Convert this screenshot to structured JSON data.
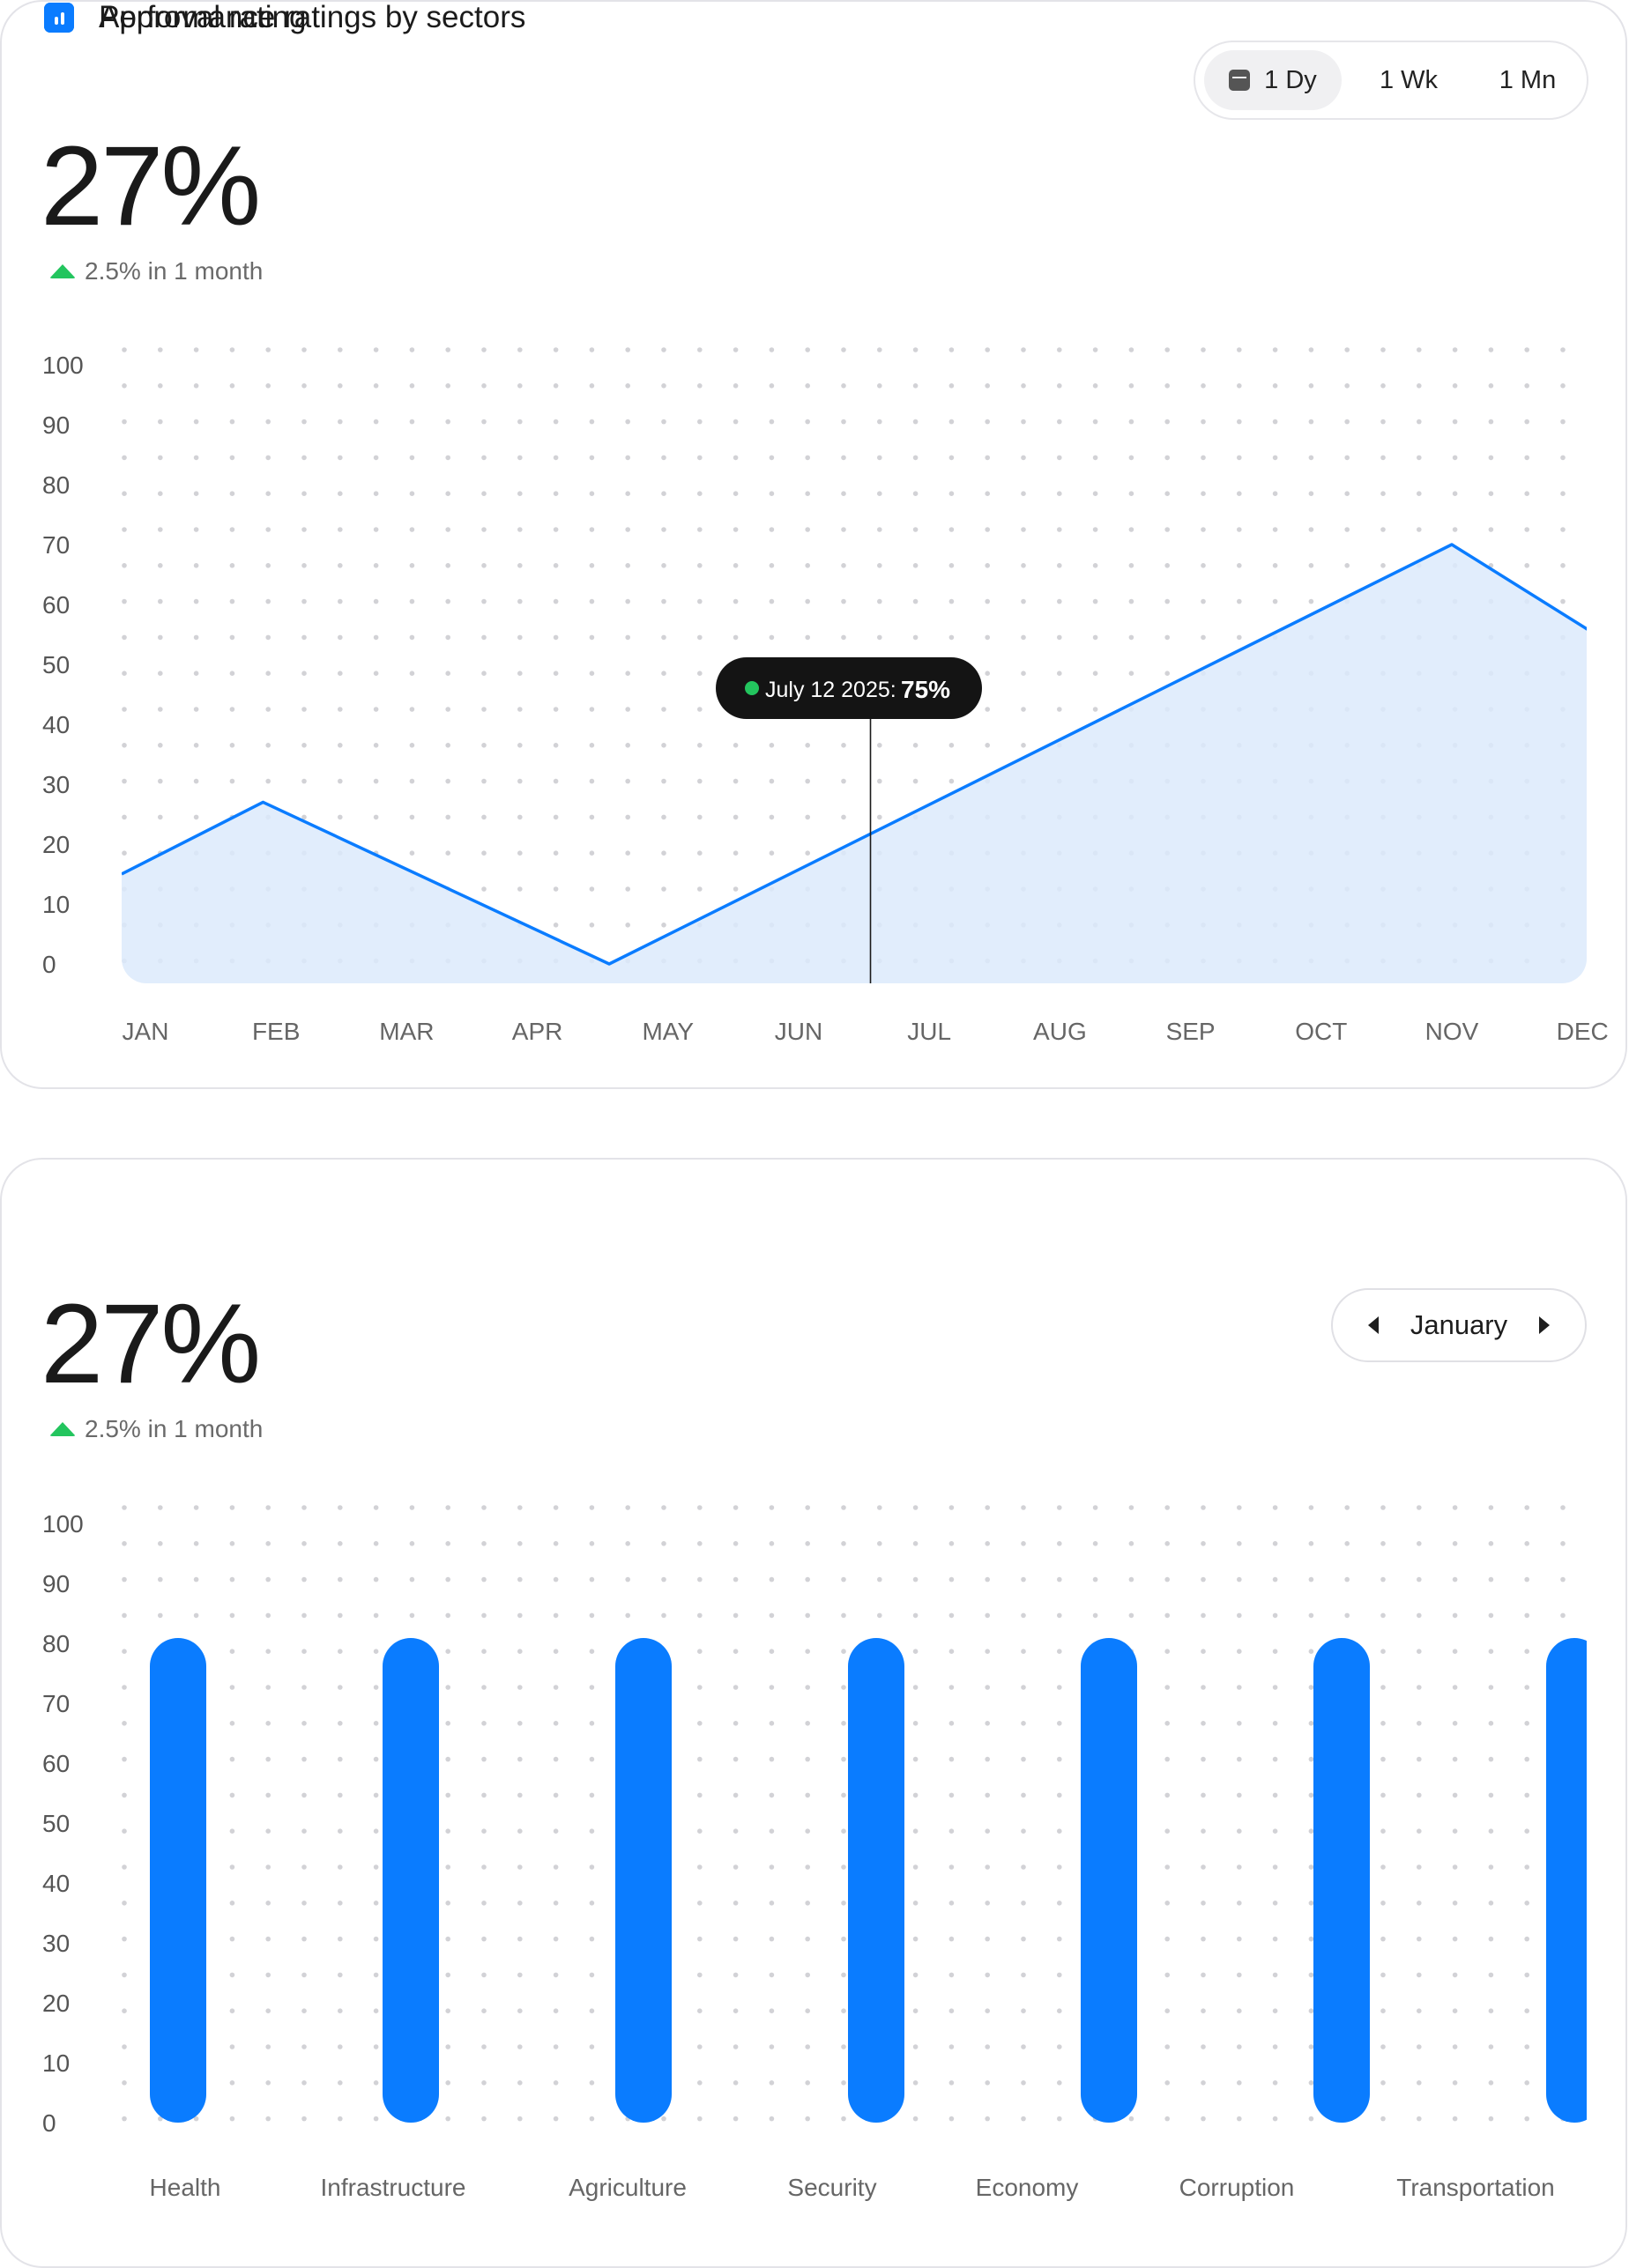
{
  "approval": {
    "title": "Approval rating",
    "value": "27%",
    "delta_text": "2.5% in 1 month",
    "range_options": [
      "1 Dy",
      "1 Wk",
      "1 Mn"
    ],
    "active_range": "1 Dy",
    "tooltip": {
      "date": "July 12 2025:",
      "value": "75%"
    }
  },
  "sectors": {
    "title": "Performance ratings by sectors",
    "value": "27%",
    "delta_text": "2.5% in 1 month",
    "month": "January"
  },
  "colors": {
    "accent": "#0a7cff",
    "area_fill": "#dceafc",
    "up": "#23c55e",
    "tooltip_bg": "#141414"
  },
  "chart_data": [
    {
      "type": "area",
      "categories": [
        "JAN",
        "FEB",
        "MAR",
        "APR",
        "MAY",
        "JUN",
        "JUL",
        "AUG",
        "SEP",
        "OCT",
        "NOV",
        "DEC"
      ],
      "y_ticks": [
        100,
        90,
        80,
        70,
        60,
        50,
        40,
        30,
        20,
        10,
        0
      ],
      "ylim": [
        0,
        100
      ],
      "points": [
        {
          "x": 0.0,
          "y": 15
        },
        {
          "x": 0.9,
          "y": 27
        },
        {
          "x": 3.55,
          "y": 0
        },
        {
          "x": 10.0,
          "y": 70
        },
        {
          "x": 11.0,
          "y": 55
        }
      ],
      "cursor_x": 5.55,
      "grid": "dots",
      "legend": "none"
    },
    {
      "type": "bar",
      "categories": [
        "Health",
        "Infrastructure",
        "Agriculture",
        "Security",
        "Economy",
        "Corruption",
        "Transportation"
      ],
      "values": [
        80,
        80,
        80,
        80,
        80,
        80,
        80
      ],
      "y_ticks": [
        100,
        90,
        80,
        70,
        60,
        50,
        40,
        30,
        20,
        10,
        0
      ],
      "ylim": [
        0,
        100
      ],
      "grid": "dots",
      "legend": "none"
    }
  ]
}
